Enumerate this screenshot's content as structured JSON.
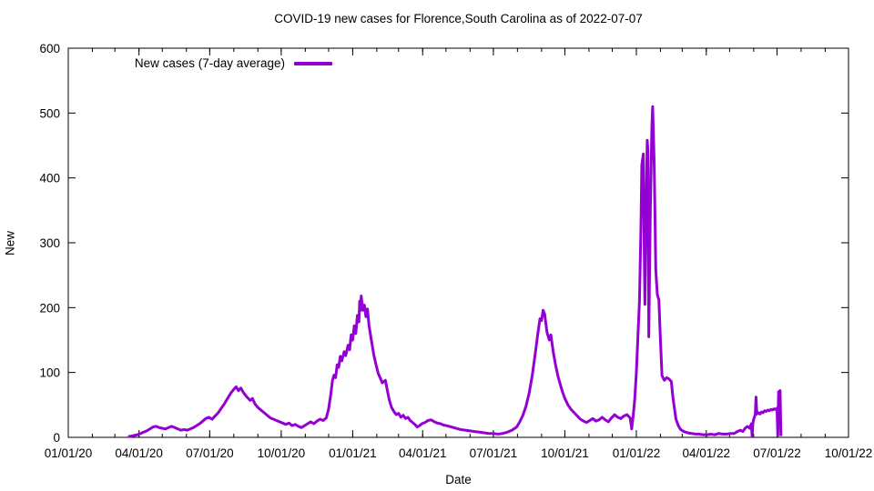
{
  "chart_data": {
    "type": "line",
    "title": "COVID-19 new cases for Florence,South Carolina as of 2022-07-07",
    "xlabel": "Date",
    "ylabel": "New",
    "x_range": [
      "2020-01-01",
      "2022-10-01"
    ],
    "ylim": [
      0,
      600
    ],
    "y_tick_step": 100,
    "grid": false,
    "legend_position": "top-left-inside",
    "x_ticks": [
      {
        "label": "01/01/20",
        "date": "2020-01-01"
      },
      {
        "label": "04/01/20",
        "date": "2020-04-01"
      },
      {
        "label": "07/01/20",
        "date": "2020-07-01"
      },
      {
        "label": "10/01/20",
        "date": "2020-10-01"
      },
      {
        "label": "01/01/21",
        "date": "2021-01-01"
      },
      {
        "label": "04/01/21",
        "date": "2021-04-01"
      },
      {
        "label": "07/01/21",
        "date": "2021-07-01"
      },
      {
        "label": "10/01/21",
        "date": "2021-10-01"
      },
      {
        "label": "01/01/22",
        "date": "2022-01-01"
      },
      {
        "label": "04/01/22",
        "date": "2022-04-01"
      },
      {
        "label": "07/01/22",
        "date": "2022-07-01"
      },
      {
        "label": "10/01/22",
        "date": "2022-10-01"
      }
    ],
    "series": [
      {
        "name": "New cases (7-day average)",
        "color": "#9400D3",
        "points": [
          [
            "2020-03-18",
            1
          ],
          [
            "2020-03-22",
            2
          ],
          [
            "2020-03-26",
            3
          ],
          [
            "2020-03-30",
            4
          ],
          [
            "2020-04-03",
            6
          ],
          [
            "2020-04-07",
            8
          ],
          [
            "2020-04-11",
            10
          ],
          [
            "2020-04-15",
            13
          ],
          [
            "2020-04-19",
            16
          ],
          [
            "2020-04-23",
            17
          ],
          [
            "2020-04-27",
            15
          ],
          [
            "2020-05-01",
            14
          ],
          [
            "2020-05-05",
            13
          ],
          [
            "2020-05-09",
            15
          ],
          [
            "2020-05-13",
            17
          ],
          [
            "2020-05-17",
            15
          ],
          [
            "2020-05-21",
            13
          ],
          [
            "2020-05-25",
            11
          ],
          [
            "2020-05-29",
            12
          ],
          [
            "2020-06-02",
            11
          ],
          [
            "2020-06-06",
            13
          ],
          [
            "2020-06-10",
            15
          ],
          [
            "2020-06-14",
            18
          ],
          [
            "2020-06-18",
            21
          ],
          [
            "2020-06-22",
            25
          ],
          [
            "2020-06-26",
            29
          ],
          [
            "2020-06-30",
            31
          ],
          [
            "2020-07-04",
            28
          ],
          [
            "2020-07-08",
            33
          ],
          [
            "2020-07-12",
            38
          ],
          [
            "2020-07-16",
            45
          ],
          [
            "2020-07-20",
            52
          ],
          [
            "2020-07-24",
            60
          ],
          [
            "2020-07-28",
            68
          ],
          [
            "2020-08-01",
            74
          ],
          [
            "2020-08-04",
            78
          ],
          [
            "2020-08-07",
            72
          ],
          [
            "2020-08-10",
            76
          ],
          [
            "2020-08-14",
            68
          ],
          [
            "2020-08-18",
            62
          ],
          [
            "2020-08-22",
            57
          ],
          [
            "2020-08-25",
            60
          ],
          [
            "2020-08-28",
            52
          ],
          [
            "2020-09-01",
            46
          ],
          [
            "2020-09-05",
            42
          ],
          [
            "2020-09-09",
            38
          ],
          [
            "2020-09-13",
            34
          ],
          [
            "2020-09-17",
            30
          ],
          [
            "2020-09-21",
            28
          ],
          [
            "2020-09-25",
            26
          ],
          [
            "2020-09-29",
            24
          ],
          [
            "2020-10-03",
            22
          ],
          [
            "2020-10-07",
            20
          ],
          [
            "2020-10-11",
            22
          ],
          [
            "2020-10-15",
            18
          ],
          [
            "2020-10-19",
            20
          ],
          [
            "2020-10-23",
            17
          ],
          [
            "2020-10-27",
            15
          ],
          [
            "2020-10-31",
            18
          ],
          [
            "2020-11-04",
            21
          ],
          [
            "2020-11-08",
            24
          ],
          [
            "2020-11-12",
            21
          ],
          [
            "2020-11-16",
            25
          ],
          [
            "2020-11-20",
            28
          ],
          [
            "2020-11-24",
            26
          ],
          [
            "2020-11-28",
            30
          ],
          [
            "2020-12-01",
            44
          ],
          [
            "2020-12-04",
            68
          ],
          [
            "2020-12-06",
            88
          ],
          [
            "2020-12-08",
            96
          ],
          [
            "2020-12-10",
            92
          ],
          [
            "2020-12-12",
            112
          ],
          [
            "2020-12-14",
            108
          ],
          [
            "2020-12-16",
            125
          ],
          [
            "2020-12-18",
            118
          ],
          [
            "2020-12-21",
            132
          ],
          [
            "2020-12-23",
            126
          ],
          [
            "2020-12-26",
            142
          ],
          [
            "2020-12-28",
            135
          ],
          [
            "2020-12-30",
            158
          ],
          [
            "2021-01-01",
            150
          ],
          [
            "2021-01-03",
            172
          ],
          [
            "2021-01-05",
            160
          ],
          [
            "2021-01-07",
            188
          ],
          [
            "2021-01-09",
            178
          ],
          [
            "2021-01-10",
            210
          ],
          [
            "2021-01-11",
            196
          ],
          [
            "2021-01-12",
            218
          ],
          [
            "2021-01-14",
            196
          ],
          [
            "2021-01-16",
            204
          ],
          [
            "2021-01-18",
            186
          ],
          [
            "2021-01-20",
            198
          ],
          [
            "2021-01-22",
            172
          ],
          [
            "2021-01-25",
            150
          ],
          [
            "2021-01-28",
            128
          ],
          [
            "2021-01-31",
            112
          ],
          [
            "2021-02-03",
            98
          ],
          [
            "2021-02-06",
            90
          ],
          [
            "2021-02-08",
            84
          ],
          [
            "2021-02-10",
            86
          ],
          [
            "2021-02-12",
            88
          ],
          [
            "2021-02-14",
            76
          ],
          [
            "2021-02-17",
            58
          ],
          [
            "2021-02-20",
            46
          ],
          [
            "2021-02-23",
            40
          ],
          [
            "2021-02-26",
            35
          ],
          [
            "2021-03-01",
            37
          ],
          [
            "2021-03-04",
            31
          ],
          [
            "2021-03-07",
            34
          ],
          [
            "2021-03-10",
            29
          ],
          [
            "2021-03-13",
            31
          ],
          [
            "2021-03-16",
            26
          ],
          [
            "2021-03-19",
            23
          ],
          [
            "2021-03-22",
            20
          ],
          [
            "2021-03-25",
            16
          ],
          [
            "2021-03-28",
            18
          ],
          [
            "2021-03-31",
            21
          ],
          [
            "2021-04-04",
            23
          ],
          [
            "2021-04-08",
            26
          ],
          [
            "2021-04-12",
            27
          ],
          [
            "2021-04-16",
            24
          ],
          [
            "2021-04-20",
            22
          ],
          [
            "2021-04-24",
            21
          ],
          [
            "2021-04-28",
            19
          ],
          [
            "2021-05-02",
            18
          ],
          [
            "2021-05-08",
            16
          ],
          [
            "2021-05-14",
            14
          ],
          [
            "2021-05-20",
            12
          ],
          [
            "2021-05-26",
            11
          ],
          [
            "2021-06-01",
            10
          ],
          [
            "2021-06-07",
            9
          ],
          [
            "2021-06-13",
            8
          ],
          [
            "2021-06-19",
            7
          ],
          [
            "2021-06-25",
            6
          ],
          [
            "2021-07-01",
            6
          ],
          [
            "2021-07-07",
            5
          ],
          [
            "2021-07-13",
            6
          ],
          [
            "2021-07-19",
            8
          ],
          [
            "2021-07-25",
            11
          ],
          [
            "2021-07-31",
            16
          ],
          [
            "2021-08-04",
            24
          ],
          [
            "2021-08-08",
            34
          ],
          [
            "2021-08-12",
            48
          ],
          [
            "2021-08-16",
            68
          ],
          [
            "2021-08-20",
            95
          ],
          [
            "2021-08-24",
            130
          ],
          [
            "2021-08-27",
            158
          ],
          [
            "2021-08-30",
            183
          ],
          [
            "2021-09-01",
            180
          ],
          [
            "2021-09-03",
            196
          ],
          [
            "2021-09-05",
            190
          ],
          [
            "2021-09-08",
            162
          ],
          [
            "2021-09-11",
            150
          ],
          [
            "2021-09-13",
            158
          ],
          [
            "2021-09-16",
            132
          ],
          [
            "2021-09-19",
            112
          ],
          [
            "2021-09-22",
            95
          ],
          [
            "2021-09-25",
            82
          ],
          [
            "2021-09-28",
            70
          ],
          [
            "2021-10-01",
            60
          ],
          [
            "2021-10-05",
            50
          ],
          [
            "2021-10-09",
            43
          ],
          [
            "2021-10-13",
            38
          ],
          [
            "2021-10-17",
            33
          ],
          [
            "2021-10-21",
            28
          ],
          [
            "2021-10-25",
            25
          ],
          [
            "2021-10-29",
            23
          ],
          [
            "2021-11-02",
            26
          ],
          [
            "2021-11-06",
            29
          ],
          [
            "2021-11-10",
            25
          ],
          [
            "2021-11-14",
            27
          ],
          [
            "2021-11-18",
            31
          ],
          [
            "2021-11-22",
            27
          ],
          [
            "2021-11-26",
            24
          ],
          [
            "2021-11-30",
            30
          ],
          [
            "2021-12-04",
            35
          ],
          [
            "2021-12-08",
            31
          ],
          [
            "2021-12-12",
            29
          ],
          [
            "2021-12-16",
            33
          ],
          [
            "2021-12-20",
            35
          ],
          [
            "2021-12-24",
            30
          ],
          [
            "2021-12-26",
            13
          ],
          [
            "2021-12-28",
            34
          ],
          [
            "2021-12-30",
            60
          ],
          [
            "2022-01-01",
            100
          ],
          [
            "2022-01-03",
            155
          ],
          [
            "2022-01-05",
            210
          ],
          [
            "2022-01-07",
            330
          ],
          [
            "2022-01-08",
            420
          ],
          [
            "2022-01-10",
            437
          ],
          [
            "2022-01-11",
            300
          ],
          [
            "2022-01-12",
            205
          ],
          [
            "2022-01-14",
            390
          ],
          [
            "2022-01-15",
            458
          ],
          [
            "2022-01-16",
            440
          ],
          [
            "2022-01-17",
            155
          ],
          [
            "2022-01-19",
            350
          ],
          [
            "2022-01-21",
            480
          ],
          [
            "2022-01-22",
            510
          ],
          [
            "2022-01-24",
            420
          ],
          [
            "2022-01-26",
            258
          ],
          [
            "2022-01-28",
            220
          ],
          [
            "2022-01-30",
            212
          ],
          [
            "2022-02-01",
            150
          ],
          [
            "2022-02-03",
            95
          ],
          [
            "2022-02-06",
            88
          ],
          [
            "2022-02-09",
            92
          ],
          [
            "2022-02-12",
            90
          ],
          [
            "2022-02-15",
            86
          ],
          [
            "2022-02-17",
            62
          ],
          [
            "2022-02-19",
            45
          ],
          [
            "2022-02-21",
            28
          ],
          [
            "2022-02-24",
            18
          ],
          [
            "2022-02-27",
            12
          ],
          [
            "2022-03-03",
            9
          ],
          [
            "2022-03-08",
            7
          ],
          [
            "2022-03-13",
            6
          ],
          [
            "2022-03-18",
            5
          ],
          [
            "2022-03-23",
            5
          ],
          [
            "2022-03-28",
            4
          ],
          [
            "2022-04-02",
            4
          ],
          [
            "2022-04-07",
            5
          ],
          [
            "2022-04-12",
            4
          ],
          [
            "2022-04-17",
            6
          ],
          [
            "2022-04-22",
            5
          ],
          [
            "2022-04-27",
            5
          ],
          [
            "2022-05-02",
            6
          ],
          [
            "2022-05-07",
            6
          ],
          [
            "2022-05-11",
            9
          ],
          [
            "2022-05-15",
            11
          ],
          [
            "2022-05-18",
            9
          ],
          [
            "2022-05-21",
            14
          ],
          [
            "2022-05-24",
            17
          ],
          [
            "2022-05-27",
            14
          ],
          [
            "2022-05-29",
            21
          ],
          [
            "2022-05-30",
            1
          ],
          [
            "2022-05-31",
            22
          ],
          [
            "2022-06-01",
            28
          ],
          [
            "2022-06-03",
            35
          ],
          [
            "2022-06-04",
            62
          ],
          [
            "2022-06-05",
            36
          ],
          [
            "2022-06-07",
            38
          ],
          [
            "2022-06-09",
            36
          ],
          [
            "2022-06-11",
            39
          ],
          [
            "2022-06-13",
            38
          ],
          [
            "2022-06-15",
            41
          ],
          [
            "2022-06-17",
            40
          ],
          [
            "2022-06-19",
            42
          ],
          [
            "2022-06-21",
            41
          ],
          [
            "2022-06-23",
            43
          ],
          [
            "2022-06-25",
            42
          ],
          [
            "2022-06-27",
            44
          ],
          [
            "2022-06-29",
            43
          ],
          [
            "2022-07-01",
            45
          ],
          [
            "2022-07-02",
            3
          ],
          [
            "2022-07-03",
            70
          ],
          [
            "2022-07-05",
            72
          ],
          [
            "2022-07-06",
            2
          ]
        ]
      }
    ]
  }
}
